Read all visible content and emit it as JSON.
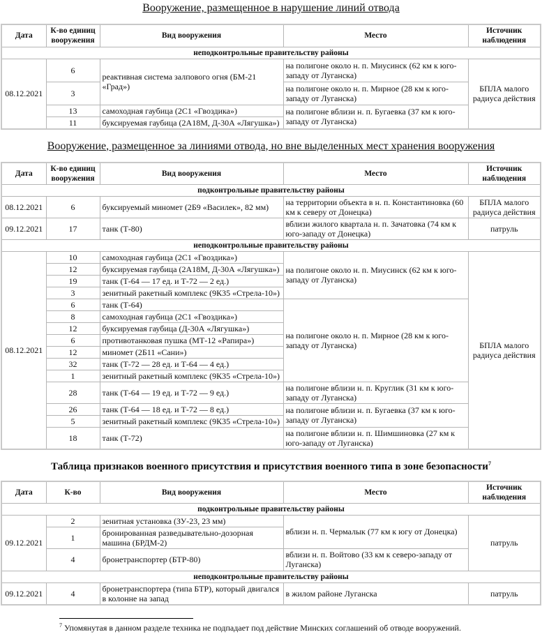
{
  "headers": {
    "date": "Дата",
    "qty": "К-во единиц вооружения",
    "qty_short": "К-во",
    "type": "Вид вооружения",
    "place": "Место",
    "source": "Источник наблюдения"
  },
  "regions": {
    "uncontrolled": "неподконтрольные правительству районы",
    "controlled": "подконтрольные правительству районы"
  },
  "t1": {
    "title": "Вооружение, размещенное в нарушение линий отвода",
    "date": "08.12.2021",
    "source": "БПЛА малого радиуса действия",
    "rows": [
      {
        "qty": "6",
        "type": "реактивная система залпового огня (БМ-21 «Град»)",
        "place": "на полигоне около н. п. Миусинск (62 км к юго-западу от Луганска)"
      },
      {
        "qty": "3",
        "place": "на полигоне около н. п. Мирное (28 км к юго-западу от Луганска)"
      },
      {
        "qty": "13",
        "type": "самоходная гаубица (2С1 «Гвоздика»)",
        "place": "на полигоне вблизи н. п. Бугаевка (37 км к юго-западу от Луганска)"
      },
      {
        "qty": "11",
        "type": "буксируемая гаубица (2А18М, Д-30А «Лягушка»)"
      }
    ]
  },
  "t2": {
    "title": "Вооружение, размещенное за линиями отвода, но вне выделенных мест хранения вооружения",
    "controlled": [
      {
        "date": "08.12.2021",
        "qty": "6",
        "type": "буксируемый миномет (2Б9 «Василек», 82 мм)",
        "place": "на территории объекта в н. п. Константиновка (60 км к северу от Донецка)",
        "source": "БПЛА малого радиуса действия"
      },
      {
        "date": "09.12.2021",
        "qty": "17",
        "type": "танк (Т-80)",
        "place": "вблизи жилого квартала н. п. Зачатовка (74 км к юго-западу от Донецка)",
        "source": "патруль"
      }
    ],
    "date": "08.12.2021",
    "source": "БПЛА малого радиуса действия",
    "places": [
      "на полигоне около н. п. Миусинск (62 км к юго-западу от Луганска)",
      "на полигоне около н. п. Мирное (28 км к юго-западу от Луганска)",
      "на полигоне вблизи н. п. Круглик (31 км к юго-западу от Луганска)",
      "на полигоне вблизи н. п. Бугаевка (37 км к юго-западу от Луганска)",
      "на полигоне вблизи н. п. Шимшиновка (27 км к юго-западу от Луганска)"
    ],
    "rows": [
      {
        "qty": "10",
        "type": "самоходная гаубица (2С1 «Гвоздика»)"
      },
      {
        "qty": "12",
        "type": "буксируемая гаубица (2А18М, Д-30А «Лягушка»)"
      },
      {
        "qty": "19",
        "type": "танк (Т-64 — 17 ед. и Т-72 — 2 ед.)"
      },
      {
        "qty": "3",
        "type": "зенитный ракетный комплекс (9К35 «Стрела-10»)"
      },
      {
        "qty": "6",
        "type": "танк (Т-64)"
      },
      {
        "qty": "8",
        "type": "самоходная гаубица (2С1 «Гвоздика»)"
      },
      {
        "qty": "12",
        "type": "буксируемая гаубица (Д-30А «Лягушка»)"
      },
      {
        "qty": "6",
        "type": "противотанковая пушка (МТ-12 «Рапира»)"
      },
      {
        "qty": "12",
        "type": "миномет (2Б11 «Сани»)"
      },
      {
        "qty": "32",
        "type": "танк (Т-72 — 28 ед. и Т-64 — 4 ед.)"
      },
      {
        "qty": "1",
        "type": "зенитный ракетный комплекс (9К35 «Стрела-10»)"
      },
      {
        "qty": "28",
        "type": "танк (Т-64 — 19 ед. и Т-72 — 9 ед.)"
      },
      {
        "qty": "26",
        "type": "танк (Т-64 — 18 ед. и Т-72 — 8 ед.)"
      },
      {
        "qty": "5",
        "type": "зенитный ракетный комплекс (9К35 «Стрела-10»)"
      },
      {
        "qty": "18",
        "type": "танк (Т-72)"
      }
    ]
  },
  "t3": {
    "title": "Таблица признаков военного присутствия и присутствия военного типа в зоне безопасности",
    "footnote_mark": "7",
    "controlled": {
      "date": "09.12.2021",
      "source": "патруль",
      "rows": [
        {
          "qty": "2",
          "type": "зенитная установка (ЗУ-23, 23 мм)",
          "place": "вблизи н. п. Чермалык (77 км к югу от Донецка)"
        },
        {
          "qty": "1",
          "type": "бронированная разведывательно-дозорная машина (БРДМ-2)"
        },
        {
          "qty": "4",
          "type": "бронетранспортер (БТР-80)",
          "place": "вблизи н. п. Войтово (33 км к северо-западу от Луганска)"
        }
      ]
    },
    "uncontrolled": {
      "date": "09.12.2021",
      "qty": "4",
      "type": "бронетранспортера (типа БТР), который двигался в колонне на запад",
      "place": "в жилом районе Луганска",
      "source": "патруль"
    }
  },
  "footnote": {
    "mark": "7",
    "text": "Упомянутая в данном разделе техника не подпадает под действие Минских соглашений об отводе вооружений."
  }
}
